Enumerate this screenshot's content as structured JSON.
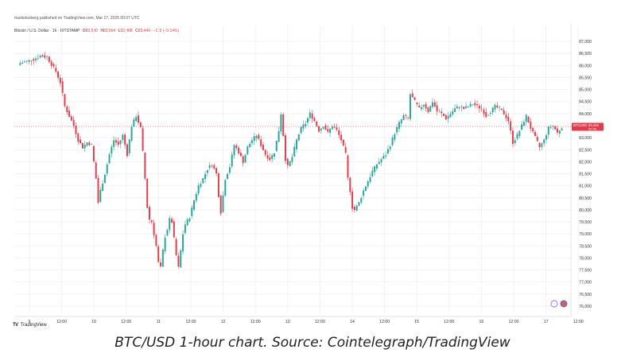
{
  "header": {
    "publisher": "marketsoberg published on TradingView.com, Mar 17, 2025 00:07 UTC",
    "symbol": "Bitcoin / U.S. Dollar · 1h · BITSTAMP",
    "o_label": "O",
    "o_value": "83,540",
    "h_label": "H",
    "h_value": "83,564",
    "l_label": "L",
    "l_value": "83,408",
    "c_label": "C",
    "c_value": "83,449",
    "change": "−115 (−0.14%)"
  },
  "price_tag": {
    "label": "BTCUSD",
    "price": "83,449",
    "countdown": "52:45",
    "color": "#e23c4a"
  },
  "footer": {
    "logo_text": "TradingView",
    "logo_mark": "TV"
  },
  "caption": "BTC/USD 1-hour chart. Source: Cointelegraph/TradingView",
  "colors": {
    "up": "#26a69a",
    "down": "#e23c4a",
    "grid": "#f0f2f5",
    "axis_text": "#333333"
  },
  "chart_data": {
    "type": "candlestick",
    "y_ticks": [
      76000,
      76500,
      77000,
      77500,
      78000,
      78500,
      79000,
      79500,
      80000,
      80500,
      81000,
      81500,
      82000,
      82500,
      83000,
      83500,
      84000,
      84500,
      85000,
      85500,
      86000,
      86500,
      87000
    ],
    "y_tick_labels": [
      "76,000",
      "76,500",
      "77,000",
      "77,500",
      "78,000",
      "78,500",
      "79,000",
      "79,500",
      "80,000",
      "80,500",
      "81,000",
      "81,500",
      "82,000",
      "82,500",
      "83,000",
      "83,500",
      "84,000",
      "84,500",
      "85,000",
      "85,500",
      "86,000",
      "86,500",
      "87,000"
    ],
    "ylim": [
      75700,
      87400
    ],
    "x_tick_labels": [
      "9",
      "12:00",
      "10",
      "12:00",
      "11",
      "12:00",
      "12",
      "12:00",
      "13",
      "12:00",
      "14",
      "12:00",
      "15",
      "12:00",
      "16",
      "12:00",
      "17",
      "12:00"
    ],
    "grid": true,
    "last_price": 83449,
    "path_points": [
      [
        0,
        86100
      ],
      [
        6,
        86250
      ],
      [
        9,
        86400
      ],
      [
        12,
        86350
      ],
      [
        14,
        86050
      ],
      [
        16,
        85750
      ],
      [
        18,
        85300
      ],
      [
        20,
        84300
      ],
      [
        22,
        83900
      ],
      [
        24,
        83500
      ],
      [
        26,
        82900
      ],
      [
        28,
        82600
      ],
      [
        30,
        82800
      ],
      [
        32,
        82700
      ],
      [
        34,
        81300
      ],
      [
        35,
        80300
      ],
      [
        36,
        80800
      ],
      [
        38,
        81500
      ],
      [
        40,
        82300
      ],
      [
        42,
        82900
      ],
      [
        44,
        82700
      ],
      [
        46,
        83100
      ],
      [
        48,
        82300
      ],
      [
        50,
        83500
      ],
      [
        52,
        83900
      ],
      [
        54,
        83400
      ],
      [
        55,
        82400
      ],
      [
        56,
        81300
      ],
      [
        57,
        80100
      ],
      [
        58,
        79600
      ],
      [
        59,
        79500
      ],
      [
        60,
        79000
      ],
      [
        61,
        78500
      ],
      [
        62,
        77800
      ],
      [
        63,
        77600
      ],
      [
        64,
        78300
      ],
      [
        65,
        78900
      ],
      [
        66,
        79200
      ],
      [
        67,
        79600
      ],
      [
        68,
        79500
      ],
      [
        69,
        78800
      ],
      [
        70,
        78100
      ],
      [
        71,
        77600
      ],
      [
        72,
        78300
      ],
      [
        73,
        79000
      ],
      [
        74,
        79400
      ],
      [
        76,
        79700
      ],
      [
        78,
        80400
      ],
      [
        80,
        81000
      ],
      [
        82,
        81300
      ],
      [
        84,
        81700
      ],
      [
        86,
        81900
      ],
      [
        88,
        81500
      ],
      [
        89,
        80600
      ],
      [
        90,
        79900
      ],
      [
        92,
        81300
      ],
      [
        94,
        81800
      ],
      [
        96,
        82700
      ],
      [
        98,
        82400
      ],
      [
        100,
        82000
      ],
      [
        102,
        82600
      ],
      [
        104,
        82900
      ],
      [
        106,
        83100
      ],
      [
        108,
        82700
      ],
      [
        110,
        82300
      ],
      [
        112,
        82100
      ],
      [
        114,
        82400
      ],
      [
        116,
        83300
      ],
      [
        117,
        84000
      ],
      [
        118,
        83100
      ],
      [
        119,
        82100
      ],
      [
        120,
        81800
      ],
      [
        122,
        82200
      ],
      [
        124,
        82900
      ],
      [
        126,
        83400
      ],
      [
        128,
        83600
      ],
      [
        130,
        84000
      ],
      [
        132,
        83700
      ],
      [
        134,
        83300
      ],
      [
        136,
        83500
      ],
      [
        138,
        83200
      ],
      [
        140,
        83500
      ],
      [
        142,
        83300
      ],
      [
        144,
        82900
      ],
      [
        146,
        82300
      ],
      [
        147,
        81300
      ],
      [
        148,
        80800
      ],
      [
        149,
        80100
      ],
      [
        150,
        80000
      ],
      [
        152,
        80300
      ],
      [
        154,
        80800
      ],
      [
        156,
        81200
      ],
      [
        158,
        81600
      ],
      [
        160,
        81900
      ],
      [
        162,
        82100
      ],
      [
        164,
        82300
      ],
      [
        166,
        82700
      ],
      [
        168,
        83200
      ],
      [
        170,
        83600
      ],
      [
        172,
        83900
      ],
      [
        174,
        83800
      ],
      [
        175,
        84800
      ],
      [
        177,
        84500
      ],
      [
        179,
        84200
      ],
      [
        181,
        84400
      ],
      [
        183,
        84100
      ],
      [
        185,
        84500
      ],
      [
        187,
        84100
      ],
      [
        189,
        84000
      ],
      [
        191,
        83800
      ],
      [
        193,
        84000
      ],
      [
        195,
        84200
      ],
      [
        197,
        84300
      ],
      [
        199,
        84200
      ],
      [
        201,
        84300
      ],
      [
        203,
        84400
      ],
      [
        205,
        84300
      ],
      [
        207,
        84200
      ],
      [
        209,
        83900
      ],
      [
        211,
        84100
      ],
      [
        213,
        84300
      ],
      [
        215,
        84200
      ],
      [
        217,
        84000
      ],
      [
        219,
        83700
      ],
      [
        221,
        82800
      ],
      [
        223,
        83100
      ],
      [
        225,
        83500
      ],
      [
        227,
        83900
      ],
      [
        229,
        83400
      ],
      [
        231,
        83000
      ],
      [
        233,
        82600
      ],
      [
        235,
        82900
      ],
      [
        237,
        83400
      ],
      [
        239,
        83500
      ],
      [
        241,
        83200
      ],
      [
        243,
        83450
      ]
    ]
  }
}
